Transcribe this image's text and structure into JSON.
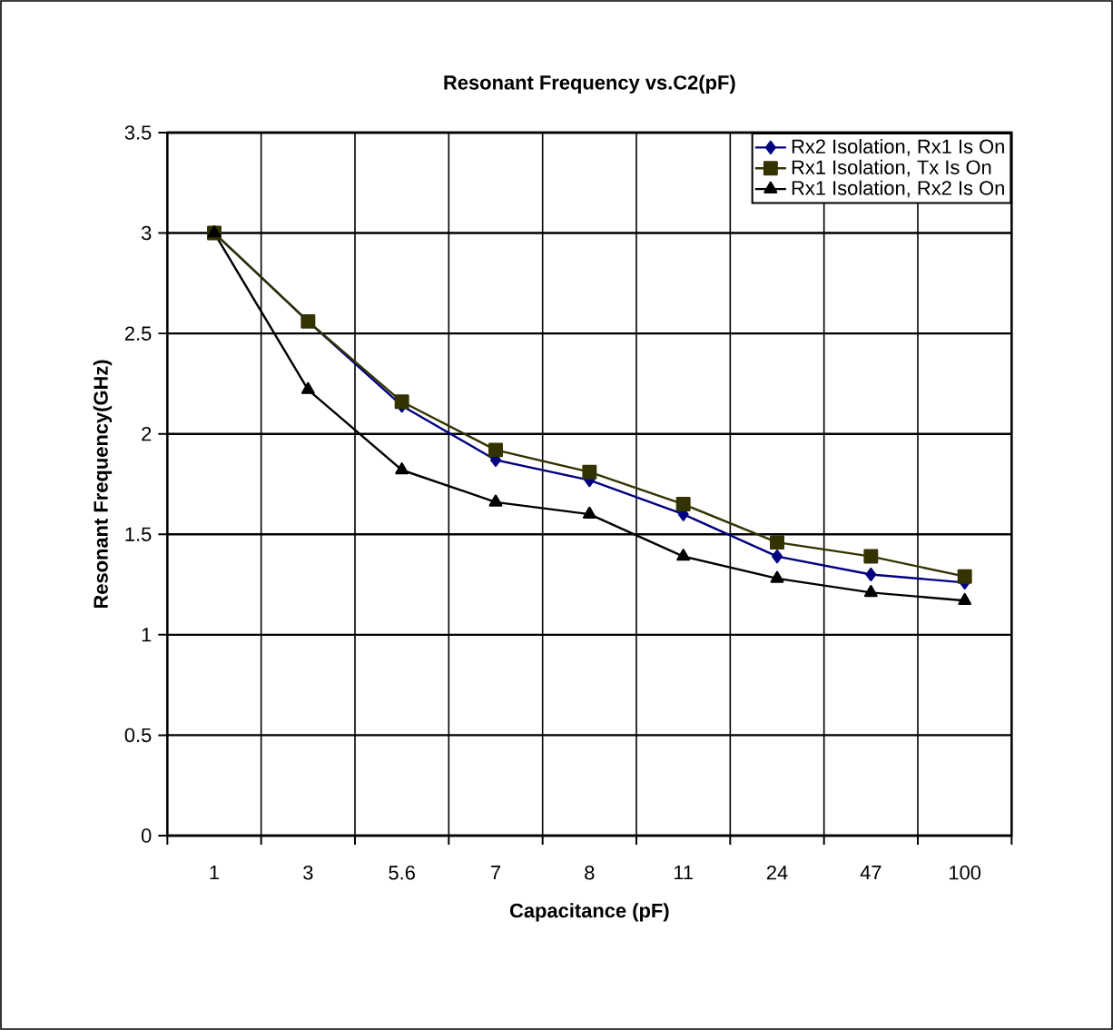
{
  "chart_data": {
    "type": "line",
    "title": "Resonant Frequency vs.C2(pF)",
    "xlabel": "Capacitance (pF)",
    "ylabel": "Resonant Frequency(GHz)",
    "categories": [
      "1",
      "3",
      "5.6",
      "7",
      "8",
      "11",
      "24",
      "47",
      "100"
    ],
    "series": [
      {
        "name": "Rx2 Isolation, Rx1 Is On",
        "color": "#000080",
        "marker": "diamond",
        "values": [
          3.0,
          2.56,
          2.14,
          1.87,
          1.77,
          1.6,
          1.39,
          1.3,
          1.26
        ]
      },
      {
        "name": "Rx1 Isolation, Tx Is On",
        "color": "#333300",
        "marker": "square",
        "values": [
          3.0,
          2.56,
          2.16,
          1.92,
          1.81,
          1.65,
          1.46,
          1.39,
          1.29
        ]
      },
      {
        "name": "Rx1 Isolation, Rx2 Is On",
        "color": "#000000",
        "marker": "triangle",
        "values": [
          3.0,
          2.22,
          1.82,
          1.66,
          1.6,
          1.39,
          1.28,
          1.21,
          1.17
        ]
      }
    ],
    "ylim": [
      0,
      3.5
    ],
    "yticks": [
      0,
      0.5,
      1,
      1.5,
      2,
      2.5,
      3,
      3.5
    ],
    "grid": true,
    "legend": "top right",
    "line_style": "solid"
  }
}
